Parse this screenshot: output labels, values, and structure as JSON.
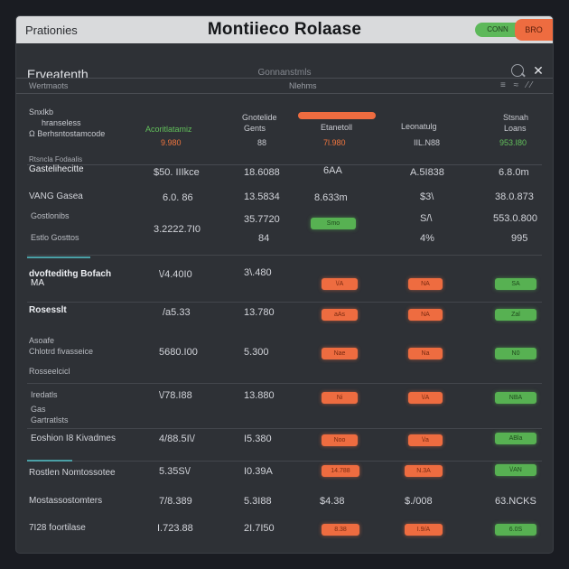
{
  "colors": {
    "background": "#1a1c22",
    "panel": "#2e3136",
    "titlebar": "#d9dadc",
    "accent_green": "#57b152",
    "accent_orange": "#ee6c40"
  },
  "titlebar": {
    "app_name": "Prationies",
    "title": "Montiieco Rolaase",
    "conn_badge": "CONN",
    "mode_badge": "BRO"
  },
  "toolbar": {
    "heading": "Erveatenth",
    "center_label": "Gonnanstmls",
    "close_glyph": "✕",
    "search_icon": "search-icon",
    "close_icon": "close-icon"
  },
  "band": {
    "left": "Wertmaots",
    "center": "Nlehms",
    "right": "≡ ≈ ⁄⁄"
  },
  "header": {
    "col0_line1": "Snxlkb",
    "col0_line2": "hranseless",
    "col0_line3": "Ω Berhsntostamcode",
    "col1_line1": "Acoritlatamiz",
    "col1_line2": "9.980",
    "col2_line1": "Gnotelide",
    "col2_line2": "Gents",
    "col2_line3": "88",
    "col3_line1": "Etanetoll",
    "col3_line2": "7l.980",
    "col4_line1": "Leonatulg",
    "col4_line2": "IIL.N88",
    "col5_line1": "Stsnah",
    "col5_line2": "Loans",
    "col5_line3": "953.I80",
    "sub_label": "Rtsncla Fodaalis"
  },
  "rows": [
    {
      "name": "Gastelihecitte",
      "c1": "$50. IIIkce",
      "c2": "18.6088",
      "c3": "6AA",
      "c4": "A.5I838",
      "c5": "6.8.0m"
    },
    {
      "name": "VANG Gasea",
      "c1": "6.0. 86",
      "c2": "13.5834",
      "c3": "8.633m",
      "c4": "$3\\",
      "c5": "38.0.873"
    },
    {
      "name": "Gostlonibs",
      "sub": "Estlo Gosttos",
      "c1": "3.2222.7I0",
      "c2": "35.7720",
      "c2b": "84",
      "c3_pill": "Smo",
      "c4": "S/\\",
      "c4b": "4%",
      "c5": "553.0.800",
      "c5b": "995"
    },
    {
      "name": "dvoftedithg Bofach",
      "sub": "MA",
      "c1": "\\/4.40I0",
      "c2": "3\\.480",
      "c3_pill": "\\/A",
      "c4_pill": "NA",
      "c5_pill": "SA"
    },
    {
      "name": "Rosesslt",
      "c1": "/a5.33",
      "c2": "13.780",
      "c3_pill": "aAs",
      "c4_pill": "NA",
      "c5_pill": "Zal"
    },
    {
      "name": "Chlotrd fivasseice",
      "pre": "Asoafe",
      "sub": "Rosseelcicl",
      "c1": "5680.I00",
      "c2": "5.300",
      "c3_pill": "Nae",
      "c4_pill": "Na",
      "c5_pill": "N0"
    },
    {
      "name": "Iredatls",
      "sub": "Gas",
      "sub2": "Gartratlsts",
      "c1": "\\/78.I88",
      "c2": "13.880",
      "c3_pill": "Ni",
      "c4_pill": "\\/A",
      "c5_pill": "NBA"
    },
    {
      "name": "Eoshion I8 Kivadmes",
      "c1": "4/88.5I\\/",
      "c2": "I5.380",
      "c3_pill": "Noo",
      "c4_pill": "\\/a",
      "c5_pill": "ABla"
    },
    {
      "name": "Rostlen Nomtossotee",
      "c1": "5.35S\\/",
      "c2": "I0.39A",
      "c3_pill": "14.788",
      "c4_pill": "N.3A",
      "c5_pill": "\\/AN"
    },
    {
      "name": "Mostassostomters",
      "c1": "7/8.389",
      "c2": "5.3I88",
      "c3": "$4.38",
      "c4": "$./008",
      "c5": "63.NCKS"
    },
    {
      "name": "7I28 foortilase",
      "c1": "I.723.88",
      "c2": "2I.7I50",
      "c3_pill": "8.38",
      "c4_pill": "I.9/A",
      "c5_pill": "6.0S"
    }
  ]
}
